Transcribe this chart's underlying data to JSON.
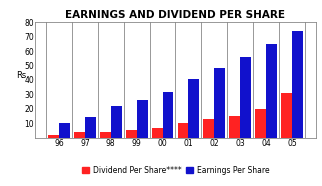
{
  "title": "EARNINGS AND DIVIDEND PER SHARE",
  "years": [
    "96",
    "97",
    "98",
    "99",
    "00",
    "01",
    "02",
    "03",
    "04",
    "05"
  ],
  "dividend": [
    2,
    4,
    4,
    5,
    7,
    10,
    13,
    15,
    20,
    31
  ],
  "earnings": [
    10,
    14,
    22,
    26,
    32,
    41,
    48,
    56,
    65,
    74
  ],
  "dividend_color": "#ff2222",
  "earnings_color": "#1111cc",
  "ylabel": "Rs.",
  "ylim": [
    0,
    80
  ],
  "yticks": [
    0,
    10,
    20,
    30,
    40,
    50,
    60,
    70,
    80
  ],
  "legend_dividend": "Dividend Per Share****",
  "legend_earnings": "Earnings Per Share",
  "bar_width": 0.42,
  "background_color": "#ffffff",
  "title_fontsize": 7.5,
  "tick_fontsize": 5.5,
  "legend_fontsize": 5.5,
  "ylabel_fontsize": 6.0
}
